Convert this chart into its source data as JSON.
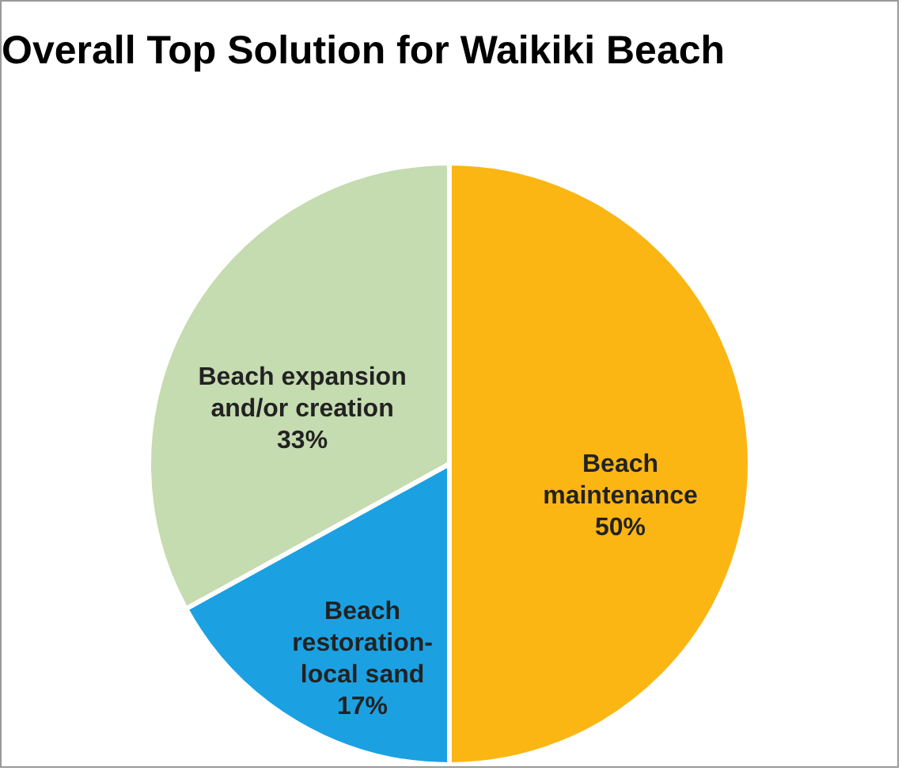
{
  "chart_data": {
    "type": "pie",
    "title": "Overall Top Solution for Waikiki Beach",
    "categories": [
      "Beach maintenance",
      "Beach restoration-local sand",
      "Beach expansion and/or creation"
    ],
    "values": [
      50,
      17,
      33
    ],
    "colors": [
      "#fbb614",
      "#1ba1e2",
      "#c5dbb0"
    ],
    "value_labels": [
      "50%",
      "17%",
      "33%"
    ]
  }
}
